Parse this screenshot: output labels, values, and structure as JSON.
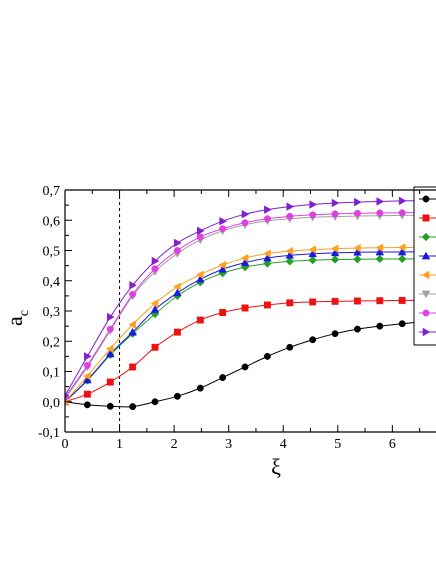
{
  "chart_data": {
    "type": "line",
    "title": "",
    "xlabel": "ξ",
    "ylabel_main": "a",
    "ylabel_sub": "c",
    "xlim": [
      0,
      6.8
    ],
    "ylim": [
      -0.1,
      0.7
    ],
    "xticks": [
      0,
      1,
      2,
      3,
      4,
      5,
      6
    ],
    "xtick_labels": [
      "0",
      "1",
      "2",
      "3",
      "4",
      "5",
      "6"
    ],
    "yticks": [
      -0.1,
      0.0,
      0.1,
      0.2,
      0.3,
      0.4,
      0.5,
      0.6,
      0.7
    ],
    "ytick_labels": [
      "-0,1",
      "0,0",
      "0,1",
      "0,2",
      "0,3",
      "0,4",
      "0,5",
      "0,6",
      "0,7"
    ],
    "reference_line_x": 1,
    "grid": false,
    "legend": "right, cut off",
    "series": [
      {
        "color": "#000000",
        "marker": "circle",
        "x": [
          0,
          0.41,
          0.83,
          1.24,
          1.65,
          2.06,
          2.48,
          2.89,
          3.3,
          3.71,
          4.12,
          4.54,
          4.95,
          5.36,
          5.77,
          6.18,
          6.6
        ],
        "y": [
          0.0,
          -0.01,
          -0.015,
          -0.016,
          0.0,
          0.018,
          0.045,
          0.08,
          0.115,
          0.15,
          0.18,
          0.205,
          0.225,
          0.24,
          0.25,
          0.258,
          0.265
        ]
      },
      {
        "color": "#ee1111",
        "marker": "square",
        "x": [
          0,
          0.41,
          0.83,
          1.24,
          1.65,
          2.06,
          2.48,
          2.89,
          3.3,
          3.71,
          4.12,
          4.54,
          4.95,
          5.36,
          5.77,
          6.18,
          6.6
        ],
        "y": [
          0.0,
          0.025,
          0.065,
          0.115,
          0.18,
          0.23,
          0.27,
          0.295,
          0.31,
          0.32,
          0.327,
          0.33,
          0.332,
          0.333,
          0.334,
          0.335,
          0.335
        ]
      },
      {
        "color": "#22a022",
        "marker": "diamond",
        "x": [
          0,
          0.41,
          0.83,
          1.24,
          1.65,
          2.06,
          2.48,
          2.89,
          3.3,
          3.71,
          4.12,
          4.54,
          4.95,
          5.36,
          5.77,
          6.18,
          6.6
        ],
        "y": [
          0.0,
          0.07,
          0.155,
          0.225,
          0.29,
          0.35,
          0.395,
          0.425,
          0.445,
          0.457,
          0.464,
          0.468,
          0.47,
          0.471,
          0.472,
          0.472,
          0.473
        ]
      },
      {
        "color": "#1a1ae0",
        "marker": "triangle-up",
        "x": [
          0,
          0.41,
          0.83,
          1.24,
          1.65,
          2.06,
          2.48,
          2.89,
          3.3,
          3.71,
          4.12,
          4.54,
          4.95,
          5.36,
          5.77,
          6.18,
          6.6
        ],
        "y": [
          0.0,
          0.072,
          0.158,
          0.23,
          0.305,
          0.36,
          0.405,
          0.438,
          0.46,
          0.475,
          0.484,
          0.489,
          0.492,
          0.494,
          0.495,
          0.495,
          0.496
        ]
      },
      {
        "color": "#ffa020",
        "marker": "triangle-left",
        "x": [
          0,
          0.41,
          0.83,
          1.24,
          1.65,
          2.06,
          2.48,
          2.89,
          3.3,
          3.71,
          4.12,
          4.54,
          4.95,
          5.36,
          5.77,
          6.18,
          6.6
        ],
        "y": [
          0.0,
          0.085,
          0.175,
          0.255,
          0.325,
          0.38,
          0.42,
          0.452,
          0.475,
          0.49,
          0.498,
          0.503,
          0.506,
          0.508,
          0.509,
          0.51,
          0.51
        ]
      },
      {
        "color": "#a0a0a0",
        "marker": "triangle-down",
        "x": [
          0,
          0.41,
          0.83,
          1.24,
          1.65,
          2.06,
          2.48,
          2.89,
          3.3,
          3.71,
          4.12,
          4.54,
          4.95,
          5.36,
          5.77,
          6.18,
          6.6
        ],
        "y": [
          0.01,
          0.115,
          0.235,
          0.35,
          0.43,
          0.49,
          0.535,
          0.565,
          0.585,
          0.598,
          0.605,
          0.61,
          0.612,
          0.614,
          0.615,
          0.616,
          0.617
        ]
      },
      {
        "color": "#e040e0",
        "marker": "circle",
        "x": [
          0,
          0.41,
          0.83,
          1.24,
          1.65,
          2.06,
          2.48,
          2.89,
          3.3,
          3.71,
          4.12,
          4.54,
          4.95,
          5.36,
          5.77,
          6.18,
          6.6
        ],
        "y": [
          0.015,
          0.12,
          0.24,
          0.355,
          0.44,
          0.5,
          0.545,
          0.572,
          0.592,
          0.605,
          0.613,
          0.618,
          0.621,
          0.623,
          0.624,
          0.625,
          0.626
        ]
      },
      {
        "color": "#8020d0",
        "marker": "triangle-right",
        "x": [
          0,
          0.41,
          0.83,
          1.24,
          1.65,
          2.06,
          2.48,
          2.89,
          3.3,
          3.71,
          4.12,
          4.54,
          4.95,
          5.36,
          5.77,
          6.18,
          6.6
        ],
        "y": [
          0.02,
          0.15,
          0.28,
          0.385,
          0.465,
          0.525,
          0.565,
          0.597,
          0.62,
          0.635,
          0.645,
          0.652,
          0.657,
          0.66,
          0.662,
          0.664,
          0.665
        ]
      }
    ]
  }
}
